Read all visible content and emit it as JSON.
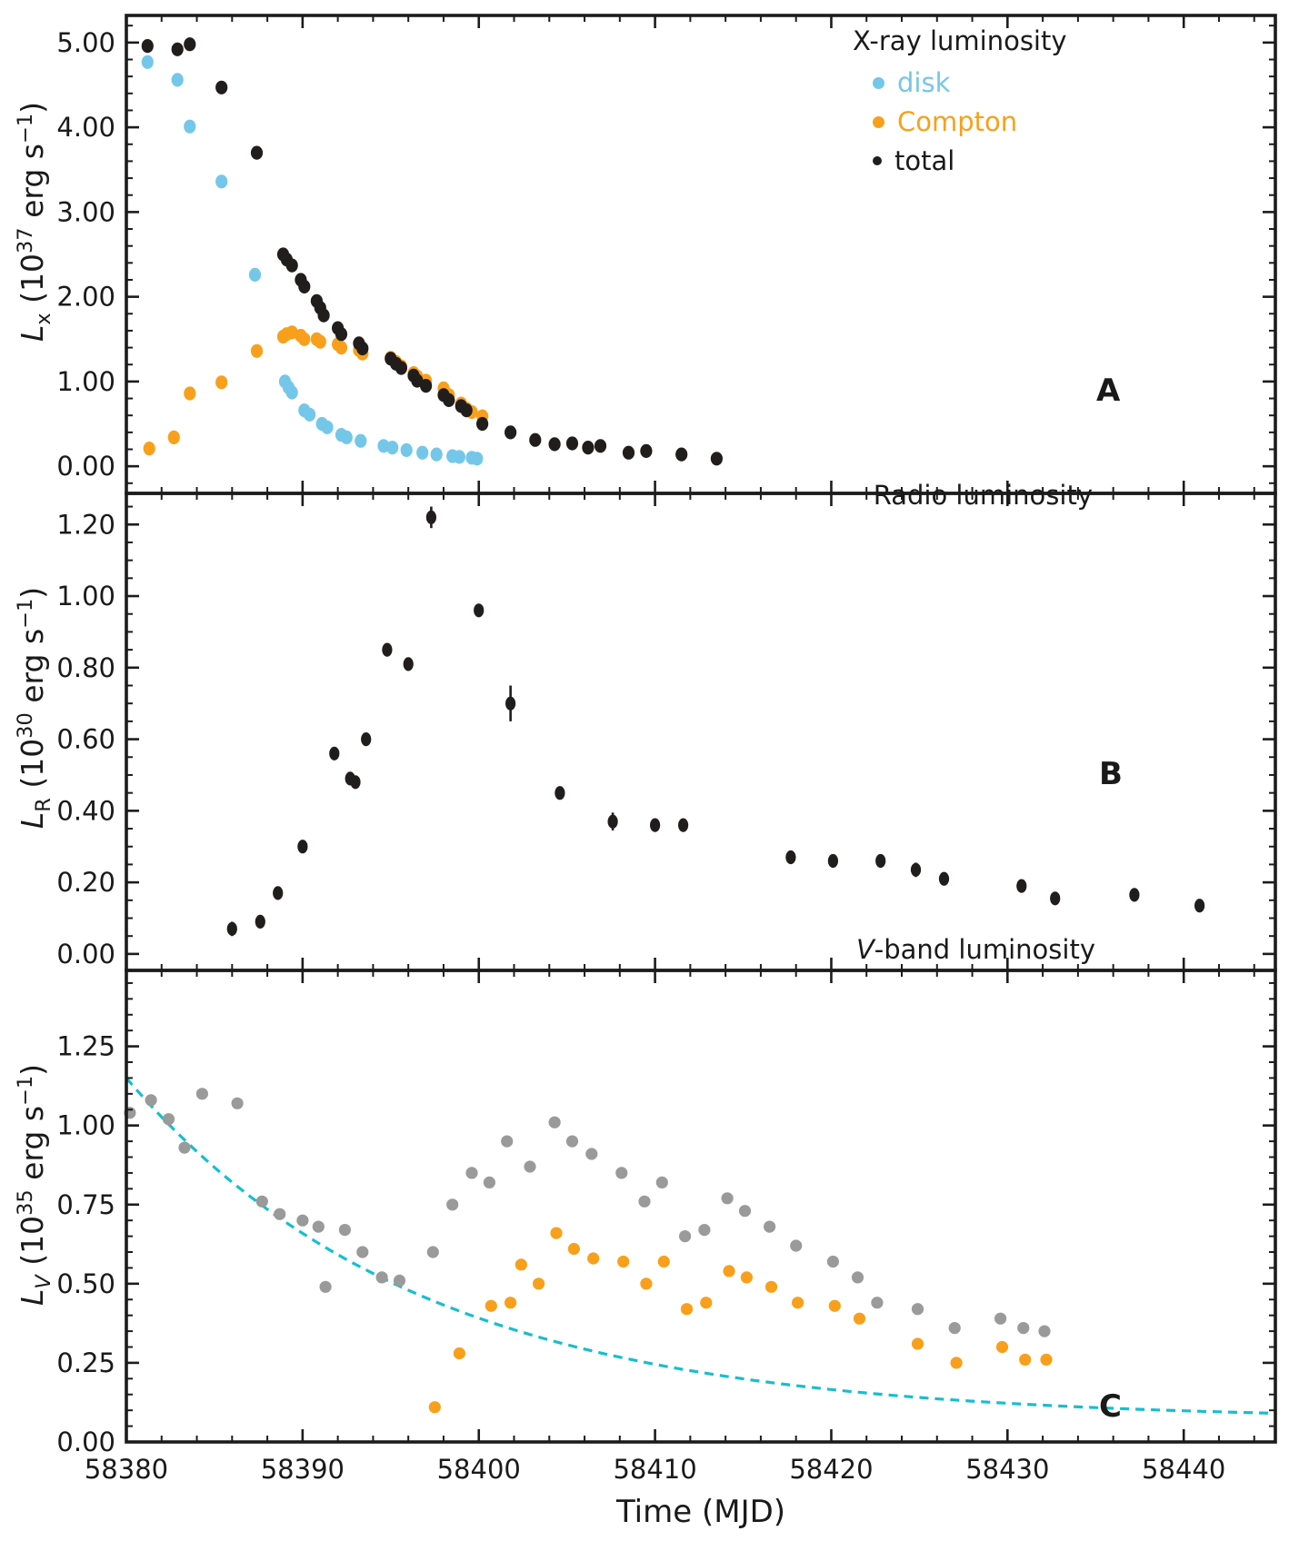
{
  "figure": {
    "background": "#ffffff",
    "axis_color": "#1c1c1c",
    "xlabel": "Time (MJD)"
  },
  "colors": {
    "disk_blue": "#74C7E9",
    "compton_orange": "#F8A01B",
    "total_black": "#211d1d",
    "vband_gray": "#9a9a9a",
    "decay_cyan": "#17BECF"
  },
  "xaxis": {
    "label": "Time (MJD)",
    "lim": [
      58380,
      58445.2
    ],
    "major_ticks": [
      58380,
      58390,
      58400,
      58410,
      58420,
      58430,
      58440
    ],
    "tick_labels": [
      "58380",
      "58390",
      "58400",
      "58410",
      "58420",
      "58430",
      "58440"
    ],
    "minor_step": 2
  },
  "chart_data": [
    {
      "id": "A",
      "type": "scatter",
      "panel_label": "A",
      "legend": {
        "title": "X-ray luminosity",
        "entries": [
          {
            "label": "disk",
            "color_key": "disk_blue"
          },
          {
            "label": "Compton",
            "color_key": "compton_orange"
          },
          {
            "label": "total",
            "color_key": "total_black"
          }
        ]
      },
      "ylabel_parts": {
        "pre": "L",
        "sub": "x",
        "mid": " (10",
        "exp": "37",
        "unit": " erg s",
        "unit_exp": "−1",
        "close": ")"
      },
      "yticks": [
        0,
        1,
        2,
        3,
        4,
        5
      ],
      "ytick_labels": [
        "0.00",
        "1.00",
        "2.00",
        "3.00",
        "4.00",
        "5.00"
      ],
      "ylim": [
        -0.32,
        5.32
      ],
      "y_minor_step": 0.2,
      "series": [
        {
          "name": "disk",
          "color_key": "disk_blue",
          "points": [
            [
              58381.2,
              4.77
            ],
            [
              58382.9,
              4.56
            ],
            [
              58383.6,
              4.01
            ],
            [
              58385.4,
              3.36
            ],
            [
              58387.3,
              2.26
            ],
            [
              58389.0,
              1.0
            ],
            [
              58389.2,
              0.93
            ],
            [
              58389.4,
              0.87
            ],
            [
              58390.1,
              0.66
            ],
            [
              58390.4,
              0.61
            ],
            [
              58391.1,
              0.5
            ],
            [
              58391.4,
              0.46
            ],
            [
              58392.2,
              0.37
            ],
            [
              58392.5,
              0.34
            ],
            [
              58393.3,
              0.3
            ],
            [
              58394.6,
              0.24
            ],
            [
              58395.1,
              0.22
            ],
            [
              58395.9,
              0.19
            ],
            [
              58396.8,
              0.16
            ],
            [
              58397.6,
              0.14
            ],
            [
              58398.5,
              0.12
            ],
            [
              58398.9,
              0.11
            ],
            [
              58399.6,
              0.1
            ],
            [
              58399.9,
              0.09
            ]
          ]
        },
        {
          "name": "Compton",
          "color_key": "compton_orange",
          "points": [
            [
              58381.3,
              0.21
            ],
            [
              58382.7,
              0.34
            ],
            [
              58383.6,
              0.86
            ],
            [
              58385.4,
              0.99
            ],
            [
              58387.4,
              1.36
            ],
            [
              58388.9,
              1.53
            ],
            [
              58389.1,
              1.56
            ],
            [
              58389.4,
              1.58
            ],
            [
              58389.9,
              1.54
            ],
            [
              58390.1,
              1.5
            ],
            [
              58390.8,
              1.5
            ],
            [
              58391.0,
              1.47
            ],
            [
              58392.0,
              1.44
            ],
            [
              58392.2,
              1.4
            ],
            [
              58393.2,
              1.37
            ],
            [
              58393.4,
              1.33
            ],
            [
              58395.0,
              1.28
            ],
            [
              58395.3,
              1.23
            ],
            [
              58395.6,
              1.18
            ],
            [
              58396.3,
              1.1
            ],
            [
              58396.5,
              1.06
            ],
            [
              58397.0,
              1.01
            ],
            [
              58398.0,
              0.92
            ],
            [
              58398.3,
              0.84
            ],
            [
              58399.0,
              0.74
            ],
            [
              58399.3,
              0.68
            ],
            [
              58399.6,
              0.64
            ],
            [
              58400.2,
              0.59
            ]
          ]
        },
        {
          "name": "total",
          "color_key": "total_black",
          "points": [
            [
              58381.2,
              4.96
            ],
            [
              58382.9,
              4.92
            ],
            [
              58383.6,
              4.98
            ],
            [
              58385.4,
              4.47
            ],
            [
              58387.4,
              3.7
            ],
            [
              58388.9,
              2.5
            ],
            [
              58389.1,
              2.44
            ],
            [
              58389.4,
              2.37
            ],
            [
              58389.9,
              2.2
            ],
            [
              58390.1,
              2.12
            ],
            [
              58390.8,
              1.95
            ],
            [
              58391.0,
              1.87
            ],
            [
              58391.2,
              1.78
            ],
            [
              58392.0,
              1.63
            ],
            [
              58392.2,
              1.56
            ],
            [
              58393.2,
              1.45
            ],
            [
              58393.4,
              1.39
            ],
            [
              58395.0,
              1.27
            ],
            [
              58395.3,
              1.21
            ],
            [
              58395.6,
              1.16
            ],
            [
              58396.3,
              1.07
            ],
            [
              58396.5,
              1.01
            ],
            [
              58397.0,
              0.95
            ],
            [
              58398.0,
              0.84
            ],
            [
              58398.3,
              0.78
            ],
            [
              58399.0,
              0.71
            ],
            [
              58399.3,
              0.66
            ],
            [
              58400.2,
              0.5
            ],
            [
              58401.8,
              0.4
            ],
            [
              58403.2,
              0.31
            ],
            [
              58404.3,
              0.26
            ],
            [
              58405.3,
              0.27
            ],
            [
              58406.2,
              0.22
            ],
            [
              58406.9,
              0.24,
              0.05
            ],
            [
              58408.5,
              0.16
            ],
            [
              58409.5,
              0.18,
              0.05
            ],
            [
              58411.5,
              0.14,
              0.04
            ],
            [
              58413.5,
              0.09
            ]
          ]
        }
      ]
    },
    {
      "id": "B",
      "type": "scatter",
      "panel_label": "B",
      "title": "Radio luminosity",
      "ylabel_parts": {
        "pre": "L",
        "sub": "R",
        "mid": " (10",
        "exp": "30",
        "unit": " erg s",
        "unit_exp": "−1",
        "close": ")"
      },
      "yticks": [
        0,
        0.2,
        0.4,
        0.6,
        0.8,
        1.0,
        1.2
      ],
      "ytick_labels": [
        "0.00",
        "0.20",
        "0.40",
        "0.60",
        "0.80",
        "1.00",
        "1.20"
      ],
      "ylim": [
        -0.046,
        1.287
      ],
      "y_minor_step": 0.05,
      "series": [
        {
          "name": "radio",
          "color_key": "total_black",
          "points": [
            [
              58386.0,
              0.07,
              0.02
            ],
            [
              58387.6,
              0.09
            ],
            [
              58388.6,
              0.17
            ],
            [
              58390.0,
              0.3
            ],
            [
              58391.8,
              0.56
            ],
            [
              58392.7,
              0.49
            ],
            [
              58393.0,
              0.48
            ],
            [
              58393.6,
              0.6
            ],
            [
              58394.8,
              0.85
            ],
            [
              58396.0,
              0.81
            ],
            [
              58397.3,
              1.22,
              0.03
            ],
            [
              58400.0,
              0.96
            ],
            [
              58401.8,
              0.7,
              0.05
            ],
            [
              58404.6,
              0.45
            ],
            [
              58407.6,
              0.37,
              0.025
            ],
            [
              58410.0,
              0.36
            ],
            [
              58411.6,
              0.36
            ],
            [
              58417.7,
              0.27
            ],
            [
              58420.1,
              0.26
            ],
            [
              58422.8,
              0.26
            ],
            [
              58424.8,
              0.235,
              0.02
            ],
            [
              58426.4,
              0.21
            ],
            [
              58430.8,
              0.19
            ],
            [
              58432.7,
              0.155
            ],
            [
              58437.2,
              0.165
            ],
            [
              58440.9,
              0.135
            ]
          ]
        }
      ]
    },
    {
      "id": "C",
      "type": "scatter",
      "panel_label": "C",
      "title_parts": {
        "italic": "V",
        "rest": "-band luminosity"
      },
      "ylabel_parts": {
        "pre": "L",
        "sub": "V",
        "mid": " (10",
        "exp": "35",
        "unit": " erg s",
        "unit_exp": "−1",
        "close": ")"
      },
      "yticks": [
        0,
        0.25,
        0.5,
        0.75,
        1.0,
        1.25
      ],
      "ytick_labels": [
        "0.00",
        "0.25",
        "0.50",
        "0.75",
        "1.00",
        "1.25"
      ],
      "ylim": [
        0,
        1.49
      ],
      "y_minor_step": 0.05,
      "series": [
        {
          "name": "series_gray",
          "color_key": "vband_gray",
          "points": [
            [
              58380.2,
              1.04
            ],
            [
              58381.4,
              1.08
            ],
            [
              58382.4,
              1.02
            ],
            [
              58383.3,
              0.93
            ],
            [
              58384.3,
              1.1
            ],
            [
              58386.3,
              1.07
            ],
            [
              58387.7,
              0.76
            ],
            [
              58388.7,
              0.72
            ],
            [
              58390.0,
              0.7
            ],
            [
              58390.9,
              0.68
            ],
            [
              58391.3,
              0.49
            ],
            [
              58392.4,
              0.67
            ],
            [
              58393.4,
              0.6
            ],
            [
              58394.5,
              0.52
            ],
            [
              58395.5,
              0.51
            ],
            [
              58397.4,
              0.6
            ],
            [
              58398.5,
              0.75
            ],
            [
              58399.6,
              0.85
            ],
            [
              58400.6,
              0.82
            ],
            [
              58401.6,
              0.95
            ],
            [
              58402.9,
              0.87
            ],
            [
              58404.3,
              1.01
            ],
            [
              58405.3,
              0.95
            ],
            [
              58406.4,
              0.91
            ],
            [
              58408.1,
              0.85
            ],
            [
              58409.4,
              0.76
            ],
            [
              58410.4,
              0.82
            ],
            [
              58411.7,
              0.65
            ],
            [
              58412.8,
              0.67
            ],
            [
              58414.1,
              0.77
            ],
            [
              58415.1,
              0.73
            ],
            [
              58416.5,
              0.68
            ],
            [
              58418.0,
              0.62
            ],
            [
              58420.1,
              0.57
            ],
            [
              58421.5,
              0.52
            ],
            [
              58422.6,
              0.44
            ],
            [
              58424.9,
              0.42
            ],
            [
              58427.0,
              0.36
            ],
            [
              58429.6,
              0.39
            ],
            [
              58430.9,
              0.36
            ],
            [
              58432.1,
              0.35
            ]
          ]
        },
        {
          "name": "series_orange",
          "color_key": "compton_orange",
          "points": [
            [
              58397.5,
              0.11
            ],
            [
              58398.9,
              0.28
            ],
            [
              58400.7,
              0.43
            ],
            [
              58401.8,
              0.44
            ],
            [
              58402.4,
              0.56
            ],
            [
              58403.4,
              0.5
            ],
            [
              58404.4,
              0.66
            ],
            [
              58405.4,
              0.61
            ],
            [
              58406.5,
              0.58
            ],
            [
              58408.2,
              0.57
            ],
            [
              58409.5,
              0.5
            ],
            [
              58410.5,
              0.57
            ],
            [
              58411.8,
              0.42
            ],
            [
              58412.9,
              0.44
            ],
            [
              58414.2,
              0.54
            ],
            [
              58415.2,
              0.52
            ],
            [
              58416.6,
              0.49
            ],
            [
              58418.1,
              0.44
            ],
            [
              58420.2,
              0.43
            ],
            [
              58421.6,
              0.39
            ],
            [
              58424.9,
              0.31
            ],
            [
              58427.1,
              0.25
            ],
            [
              58429.7,
              0.3
            ],
            [
              58431.0,
              0.26
            ],
            [
              58432.2,
              0.26
            ]
          ]
        }
      ],
      "curve": {
        "name": "decay_model",
        "style": "dashed",
        "color_key": "decay_cyan",
        "model": "exponential_decay",
        "params": {
          "t0": 58380,
          "amplitude": 1.08,
          "tau": 16.5,
          "baseline": 0.07
        }
      }
    }
  ]
}
